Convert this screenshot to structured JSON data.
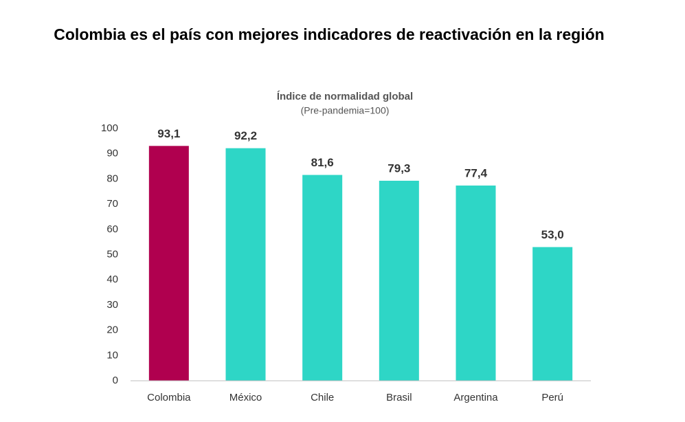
{
  "chart_data": {
    "type": "bar",
    "title": "Colombia es el país con mejores indicadores de reactivación en la región",
    "subtitle": "Índice de normalidad global",
    "unit_note": "(Pre-pandemia=100)",
    "categories": [
      "Colombia",
      "México",
      "Chile",
      "Brasil",
      "Argentina",
      "Perú"
    ],
    "values": [
      93.1,
      92.2,
      81.6,
      79.3,
      77.4,
      53.0
    ],
    "value_labels": [
      "93,1",
      "92,2",
      "81,6",
      "79,3",
      "77,4",
      "53,0"
    ],
    "colors": [
      "#b0004f",
      "#2ed6c6",
      "#2ed6c6",
      "#2ed6c6",
      "#2ed6c6",
      "#2ed6c6"
    ],
    "label_colors": [
      "#a0004a",
      "#26c4b6",
      "#26c4b6",
      "#26c4b6",
      "#26c4b6",
      "#26c4b6"
    ],
    "ylim": [
      0,
      100
    ],
    "yticks": [
      0,
      10,
      20,
      30,
      40,
      50,
      60,
      70,
      80,
      90,
      100
    ],
    "grid": false
  }
}
